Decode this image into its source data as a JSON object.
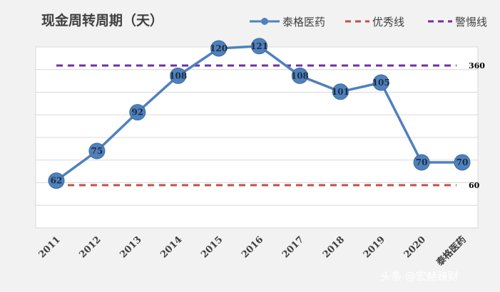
{
  "chart_data": {
    "type": "line",
    "title": "现金周转周期（天）",
    "categories": [
      "2011",
      "2012",
      "2013",
      "2014",
      "2015",
      "2016",
      "2017",
      "2018",
      "2019",
      "2020",
      "泰格医药"
    ],
    "series": [
      {
        "name": "泰格医药",
        "values": [
          62,
          75,
          92,
          108,
          120,
          121,
          108,
          101,
          105,
          70,
          70
        ],
        "color": "#4f81bd",
        "style": "solid-markers"
      },
      {
        "name": "优秀线",
        "values": [
          60,
          60,
          60,
          60,
          60,
          60,
          60,
          60,
          60,
          60,
          60
        ],
        "color": "#c0504d",
        "style": "dashed",
        "end_label": "60"
      },
      {
        "name": "警惕线",
        "values": [
          360,
          360,
          360,
          360,
          360,
          360,
          360,
          360,
          360,
          360,
          360
        ],
        "color": "#7030a0",
        "style": "dashed",
        "end_label": "360"
      }
    ],
    "xlabel": "",
    "ylabel": "",
    "ylim": [
      50,
      370
    ],
    "grid": true,
    "legend": "top-right"
  },
  "watermark": "头条 @宏赫臻财"
}
